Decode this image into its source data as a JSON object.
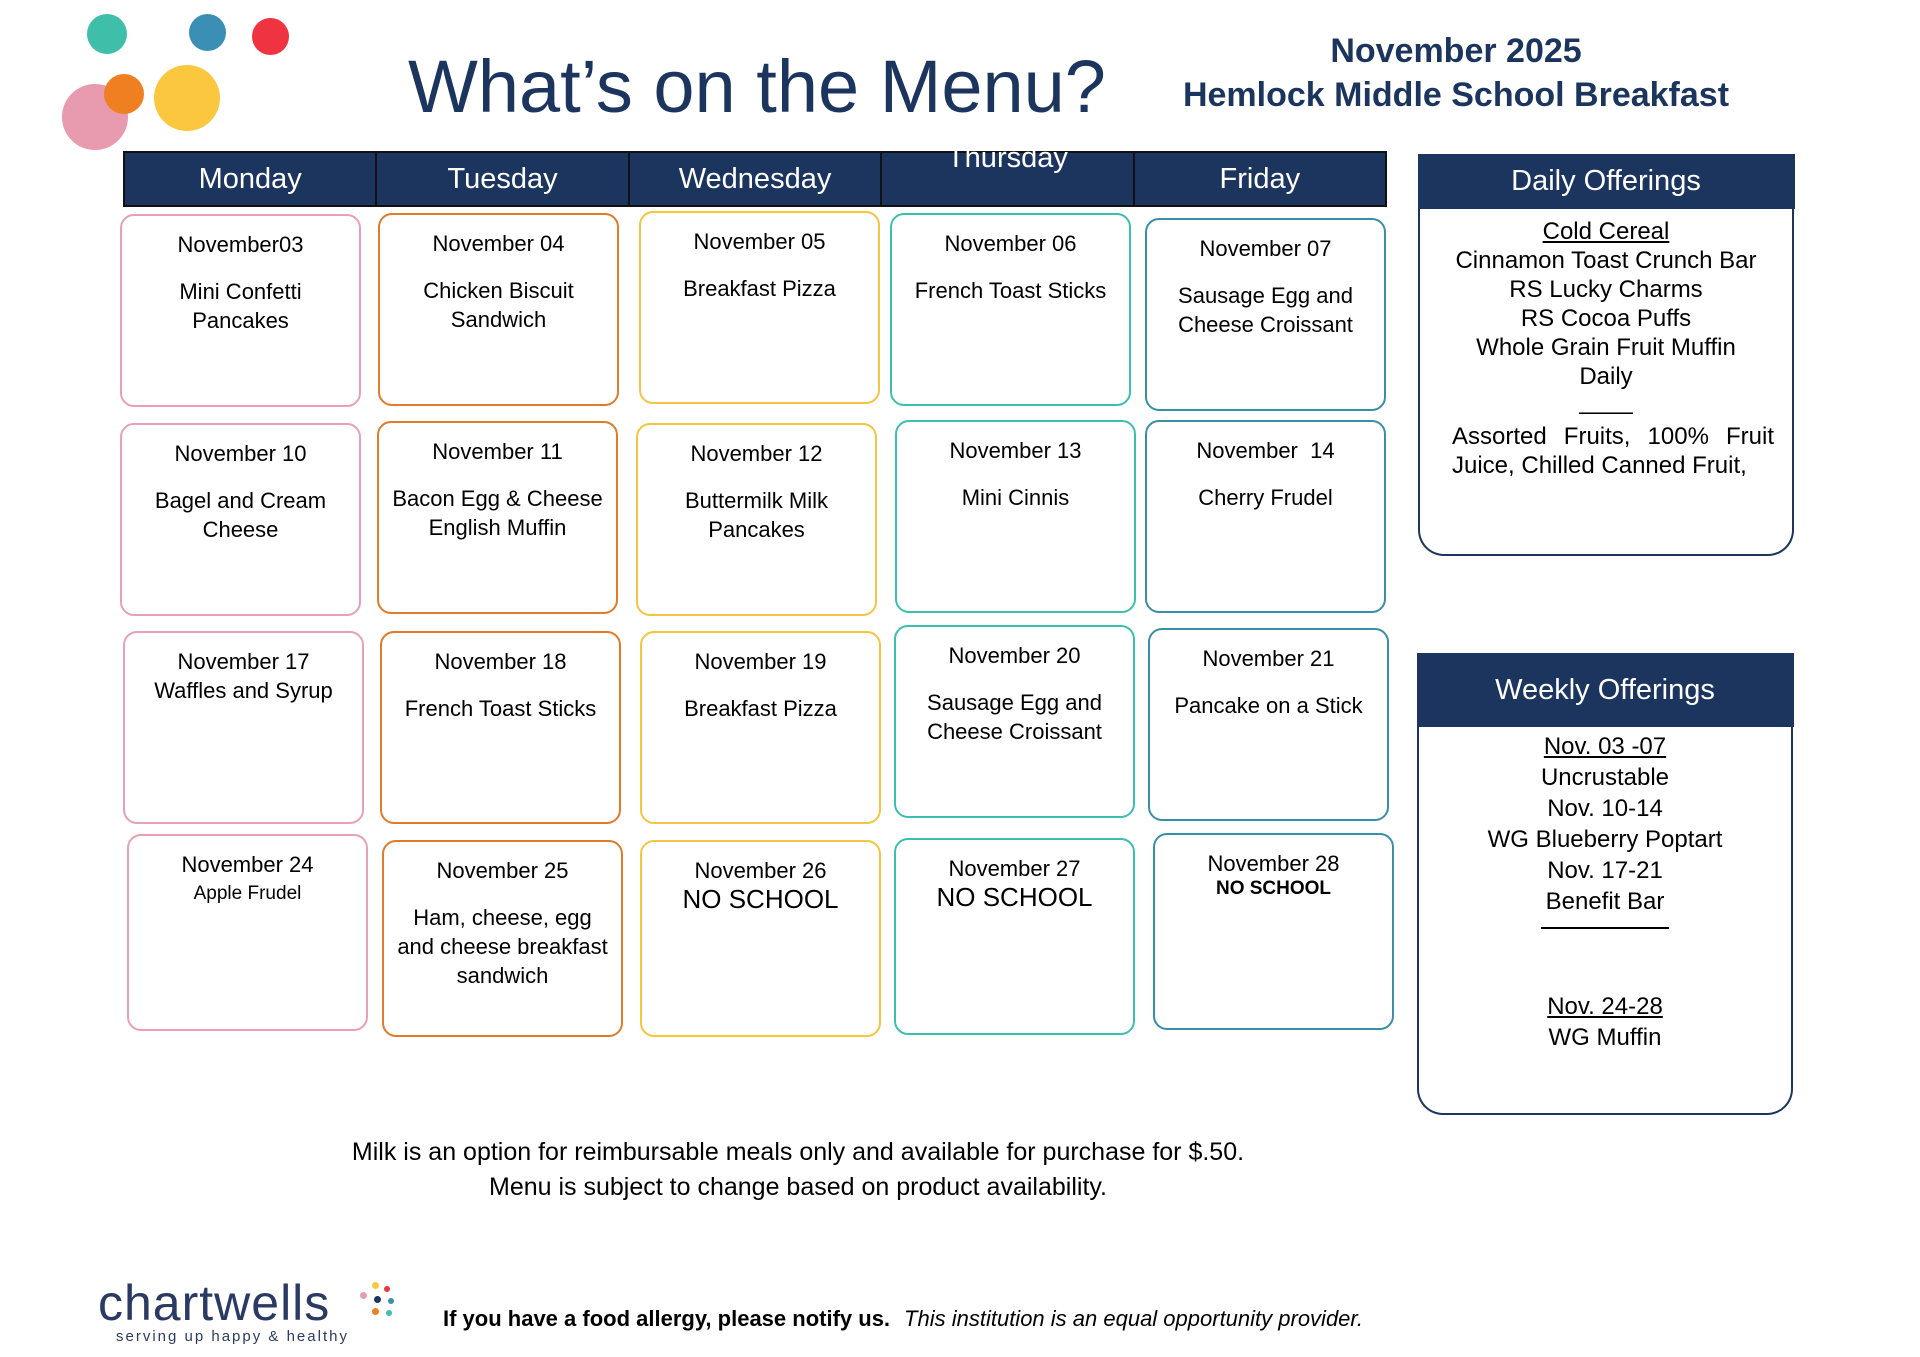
{
  "header": {
    "title": "What’s on the Menu?",
    "month": "November 2025",
    "school": "Hemlock Middle School Breakfast"
  },
  "colors": {
    "navy": "#1c355e",
    "monday": "#e8a0b4",
    "tuesday": "#e07b2a",
    "wednesday": "#f5c542",
    "thursday": "#3dbfb0",
    "friday": "#3a8fa8"
  },
  "logo_dots": [
    "#3fbfaa",
    "#3b8fb5",
    "#ef3340",
    "#e89aae",
    "#f07f22",
    "#fbc73e"
  ],
  "days": [
    "Monday",
    "Tuesday",
    "Wednesday",
    "Thursday",
    "Friday"
  ],
  "weeks": [
    [
      {
        "date": "November03",
        "meal": "Mini Confetti Pancakes"
      },
      {
        "date": "November 04",
        "meal": "Chicken Biscuit Sandwich"
      },
      {
        "date": "November 05",
        "meal": "Breakfast Pizza"
      },
      {
        "date": "November 06",
        "meal": "French Toast Sticks"
      },
      {
        "date": "November 07",
        "meal": "Sausage Egg and Cheese Croissant"
      }
    ],
    [
      {
        "date": "November 10",
        "meal": "Bagel and Cream Cheese"
      },
      {
        "date": "November 11",
        "meal": "Bacon Egg & Cheese English Muffin"
      },
      {
        "date": "November 12",
        "meal": "Buttermilk Milk Pancakes"
      },
      {
        "date": "November 13",
        "meal": "Mini Cinnis"
      },
      {
        "date": "November  14",
        "meal": "Cherry Frudel"
      }
    ],
    [
      {
        "date": "November 17",
        "meal": "Waffles and Syrup"
      },
      {
        "date": "November 18",
        "meal": "French Toast Sticks"
      },
      {
        "date": "November 19",
        "meal": "Breakfast Pizza"
      },
      {
        "date": "November 20",
        "meal": "Sausage Egg and Cheese Croissant"
      },
      {
        "date": "November 21",
        "meal": "Pancake on a Stick"
      }
    ],
    [
      {
        "date": "November 24",
        "meal": "Apple Frudel"
      },
      {
        "date": "November 25",
        "meal": "Ham, cheese, egg and cheese breakfast sandwich"
      },
      {
        "date": "November 26",
        "meal": "NO SCHOOL"
      },
      {
        "date": "November 27",
        "meal": "NO SCHOOL"
      },
      {
        "date": "November 28",
        "meal": "NO SCHOOL"
      }
    ]
  ],
  "daily_offerings": {
    "title": "Daily Offerings",
    "heading": "Cold Cereal",
    "items": [
      "Cinnamon Toast Crunch Bar",
      "RS Lucky Charms",
      "RS Cocoa Puffs",
      "Whole Grain Fruit Muffin",
      "Daily"
    ],
    "divider": "____",
    "fruit": "Assorted Fruits, 100% Fruit Juice, Chilled Canned Fruit,"
  },
  "weekly_offerings": {
    "title": "Weekly Offerings",
    "weeks": [
      {
        "range": " Nov. 03 -07",
        "item": "Uncrustable"
      },
      {
        "range": "Nov. 10-14",
        "item": "WG Blueberry Poptart"
      },
      {
        "range": "Nov. 17-21",
        "item": "Benefit Bar"
      },
      {
        "range": "Nov. 24-28",
        "item": "WG Muffin"
      }
    ]
  },
  "footer": {
    "milk_note": "Milk is an option for reimbursable meals only and available for purchase for $.50.",
    "change_note": "Menu is subject to change based on product availability.",
    "allergy": "If you have a food allergy, please notify us.",
    "equal_opportunity": "This institution is an equal opportunity provider.",
    "brand": "chartwells",
    "tagline": "serving up happy & healthy"
  }
}
